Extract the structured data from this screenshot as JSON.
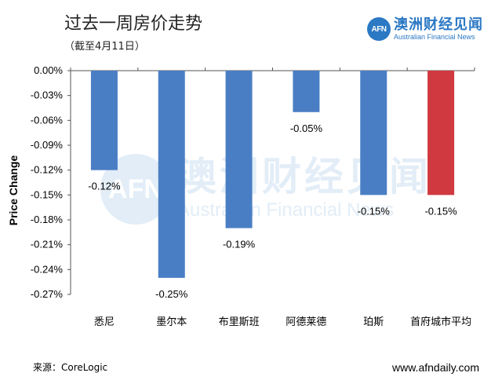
{
  "header": {
    "title": "过去一周房价走势",
    "subtitle": "（截至4月11日）"
  },
  "brand": {
    "logo_text": "AFN",
    "name_cn": "澳洲财经见闻",
    "name_en": "Australian Financial News",
    "color": "#2b78c4"
  },
  "watermark": {
    "logo_text": "AFN",
    "name_cn": "澳洲财经见闻",
    "name_en": "Australian Financial News"
  },
  "footer": {
    "source": "来源：CoreLogic",
    "website": "www.afndaily.com"
  },
  "chart_data": {
    "type": "bar",
    "title": "过去一周房价走势",
    "subtitle": "（截至4月11日）",
    "xlabel": "",
    "ylabel": "Price Change",
    "categories": [
      "悉尼",
      "墨尔本",
      "布里斯班",
      "阿德莱德",
      "珀斯",
      "首府城市平均"
    ],
    "values": [
      -0.12,
      -0.25,
      -0.19,
      -0.05,
      -0.15,
      -0.15
    ],
    "data_labels": [
      "-0.12%",
      "-0.25%",
      "-0.19%",
      "-0.05%",
      "-0.15%",
      "-0.15%"
    ],
    "bar_colors": [
      "#4a7ec4",
      "#4a7ec4",
      "#4a7ec4",
      "#4a7ec4",
      "#4a7ec4",
      "#d0393f"
    ],
    "ylim": [
      -0.27,
      0.0
    ],
    "yticks": [
      0.0,
      -0.03,
      -0.06,
      -0.09,
      -0.12,
      -0.15,
      -0.18,
      -0.21,
      -0.24,
      -0.27
    ],
    "ytick_labels": [
      "0.00%",
      "-0.03%",
      "-0.06%",
      "-0.09%",
      "-0.12%",
      "-0.15%",
      "-0.18%",
      "-0.21%",
      "-0.24%",
      "-0.27%"
    ],
    "grid": false,
    "legend": "none"
  }
}
